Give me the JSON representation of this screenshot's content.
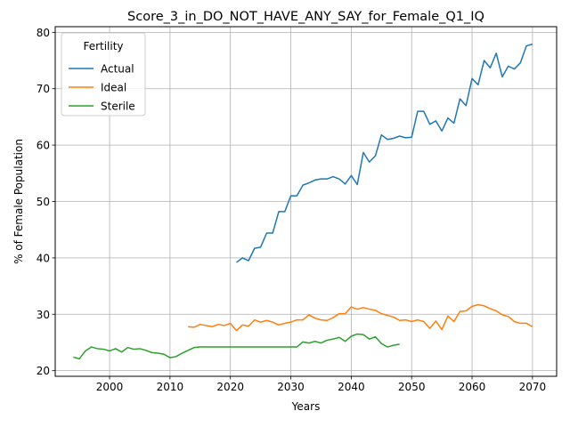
{
  "chart_data": {
    "type": "line",
    "title": "Score_3_in_DO_NOT_HAVE_ANY_SAY_for_Female_Q1_IQ",
    "xlabel": "Years",
    "ylabel": "% of Female Population",
    "xlim": [
      1991,
      2074
    ],
    "ylim": [
      19,
      81
    ],
    "xticks": [
      2000,
      2010,
      2020,
      2030,
      2040,
      2050,
      2060,
      2070
    ],
    "yticks": [
      20,
      30,
      40,
      50,
      60,
      70,
      80
    ],
    "grid": true,
    "legend": {
      "title": "Fertility",
      "position": "top-left"
    },
    "series": [
      {
        "name": "Actual",
        "color": "#1f77b4",
        "x": [
          2021,
          2022,
          2023,
          2024,
          2025,
          2026,
          2027,
          2028,
          2029,
          2030,
          2031,
          2032,
          2033,
          2034,
          2035,
          2036,
          2037,
          2038,
          2039,
          2040,
          2041,
          2042,
          2043,
          2044,
          2045,
          2046,
          2047,
          2048,
          2049,
          2050,
          2051,
          2052,
          2053,
          2054,
          2055,
          2056,
          2057,
          2058,
          2059,
          2060,
          2061,
          2062,
          2063,
          2064,
          2065,
          2066,
          2067,
          2068,
          2069,
          2070
        ],
        "y": [
          39.2,
          40.0,
          39.5,
          41.7,
          41.9,
          44.4,
          44.4,
          48.2,
          48.2,
          51.0,
          51.0,
          52.9,
          53.3,
          53.8,
          54.0,
          54.0,
          54.4,
          54.0,
          53.1,
          54.6,
          53.0,
          58.7,
          57.0,
          58.1,
          61.8,
          61.0,
          61.2,
          61.6,
          61.3,
          61.4,
          66.0,
          66.0,
          63.7,
          64.3,
          62.5,
          64.8,
          63.9,
          68.2,
          67.0,
          71.8,
          70.7,
          75.0,
          73.7,
          76.3,
          72.1,
          74.0,
          73.5,
          74.6,
          77.6,
          77.9
        ]
      },
      {
        "name": "Ideal",
        "color": "#ff7f0e",
        "x": [
          2013,
          2014,
          2015,
          2016,
          2017,
          2018,
          2019,
          2020,
          2021,
          2022,
          2023,
          2024,
          2025,
          2026,
          2027,
          2028,
          2029,
          2030,
          2031,
          2032,
          2033,
          2034,
          2035,
          2036,
          2037,
          2038,
          2039,
          2040,
          2041,
          2042,
          2043,
          2044,
          2045,
          2046,
          2047,
          2048,
          2049,
          2050,
          2051,
          2052,
          2053,
          2054,
          2055,
          2056,
          2057,
          2058,
          2059,
          2060,
          2061,
          2062,
          2063,
          2064,
          2065,
          2066,
          2067,
          2068,
          2069,
          2070
        ],
        "y": [
          27.8,
          27.7,
          28.2,
          28.0,
          27.8,
          28.2,
          28.0,
          28.4,
          27.1,
          28.1,
          27.9,
          29.0,
          28.6,
          28.9,
          28.6,
          28.1,
          28.4,
          28.6,
          29.0,
          29.0,
          29.9,
          29.3,
          29.0,
          28.9,
          29.4,
          30.1,
          30.1,
          31.3,
          30.9,
          31.2,
          30.9,
          30.7,
          30.1,
          29.8,
          29.5,
          28.9,
          29.0,
          28.7,
          29.0,
          28.7,
          27.5,
          28.8,
          27.3,
          29.7,
          28.7,
          30.5,
          30.6,
          31.4,
          31.7,
          31.5,
          31.0,
          30.6,
          29.9,
          29.6,
          28.7,
          28.4,
          28.4,
          27.8
        ]
      },
      {
        "name": "Sterile",
        "color": "#2ca02c",
        "x": [
          1994,
          1995,
          1996,
          1997,
          1998,
          1999,
          2000,
          2001,
          2002,
          2003,
          2004,
          2005,
          2006,
          2007,
          2008,
          2009,
          2010,
          2011,
          2012,
          2013,
          2014,
          2015,
          2016,
          2017,
          2018,
          2019,
          2020,
          2021,
          2022,
          2023,
          2024,
          2025,
          2026,
          2027,
          2028,
          2029,
          2030,
          2031,
          2032,
          2033,
          2034,
          2035,
          2036,
          2037,
          2038,
          2039,
          2040,
          2041,
          2042,
          2043,
          2044,
          2045,
          2046,
          2047,
          2048
        ],
        "y": [
          22.4,
          22.1,
          23.5,
          24.2,
          23.9,
          23.8,
          23.5,
          23.9,
          23.3,
          24.1,
          23.8,
          23.9,
          23.6,
          23.2,
          23.1,
          22.9,
          22.3,
          22.5,
          23.1,
          23.6,
          24.1,
          24.2,
          24.2,
          24.2,
          24.2,
          24.2,
          24.2,
          24.2,
          24.2,
          24.2,
          24.2,
          24.2,
          24.2,
          24.2,
          24.2,
          24.2,
          24.2,
          24.2,
          25.1,
          24.9,
          25.2,
          24.9,
          25.4,
          25.6,
          25.9,
          25.2,
          26.1,
          26.5,
          26.4,
          25.6,
          26.0,
          24.8,
          24.2,
          24.5,
          24.7
        ]
      }
    ]
  }
}
